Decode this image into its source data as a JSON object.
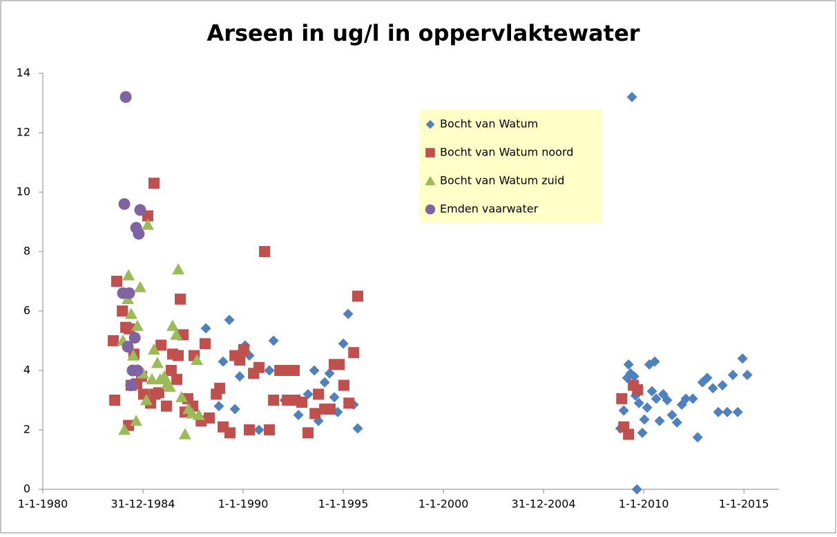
{
  "chart_data": {
    "type": "scatter",
    "title": "Arseen in ug/l in oppervlaktewater",
    "xlim": [
      1980,
      2016.75
    ],
    "xticks": [
      {
        "value": 1980,
        "label": "1-1-1980"
      },
      {
        "value": 1985,
        "label": "31-12-1984"
      },
      {
        "value": 1990,
        "label": "1-1-1990"
      },
      {
        "value": 1995,
        "label": "1-1-1995"
      },
      {
        "value": 2000,
        "label": "1-1-2000"
      },
      {
        "value": 2005,
        "label": "31-12-2004"
      },
      {
        "value": 2010,
        "label": "1-1-2010"
      },
      {
        "value": 2015,
        "label": "1-1-2015"
      }
    ],
    "ylim": [
      0,
      14
    ],
    "yticks": [
      0,
      2,
      4,
      6,
      8,
      10,
      12,
      14
    ],
    "grid": false,
    "legend": "top-right",
    "series": [
      {
        "name": "Bocht van Watum",
        "color": "#4f81bd",
        "marker": "diamond",
        "x": [
          1988.14,
          1989.0,
          1989.31,
          1989.59,
          1989.83,
          1990.1,
          1990.31,
          1990.79,
          1991.31,
          1991.52,
          1988.79,
          1992.07,
          1992.76,
          1993.24,
          1993.55,
          1993.76,
          1994.07,
          1994.31,
          1994.55,
          1994.72,
          1995.0,
          1995.24,
          1995.52,
          1995.72,
          2009.41,
          2009.66,
          2008.83,
          2009.0,
          2009.24,
          2009.34,
          2009.52,
          2009.17,
          2009.59,
          2009.76,
          2009.93,
          2010.03,
          2010.17,
          2010.28,
          2010.41,
          2010.55,
          2010.62,
          2010.79,
          2010.97,
          2011.17,
          2011.41,
          2011.66,
          2011.9,
          2012.1,
          2012.45,
          2012.69,
          2012.93,
          2013.17,
          2013.45,
          2013.72,
          2013.93,
          2014.17,
          2014.45,
          2014.69,
          2014.93,
          2015.17
        ],
        "values": [
          5.42,
          4.3,
          5.7,
          2.7,
          3.8,
          4.84,
          4.5,
          2.0,
          4.0,
          5.0,
          2.8,
          3.0,
          2.5,
          3.2,
          4.0,
          2.3,
          3.6,
          3.9,
          3.1,
          2.6,
          4.9,
          5.9,
          2.85,
          2.05,
          13.2,
          0,
          2.05,
          2.65,
          4.2,
          3.9,
          3.8,
          3.75,
          3.15,
          2.9,
          1.9,
          2.35,
          2.75,
          4.2,
          3.3,
          4.3,
          3.05,
          2.3,
          3.2,
          3.0,
          2.5,
          2.25,
          2.85,
          3.05,
          3.05,
          1.75,
          3.6,
          3.75,
          3.4,
          2.6,
          3.5,
          2.6,
          3.85,
          2.6,
          4.4,
          3.85
        ]
      },
      {
        "name": "Bocht van Watum noord",
        "color": "#c0504d",
        "marker": "square",
        "x": [
          1983.52,
          1983.59,
          1983.69,
          1983.97,
          1984.14,
          1984.28,
          1984.31,
          1984.41,
          1984.55,
          1984.69,
          1984.93,
          1985.03,
          1985.24,
          1985.38,
          1985.55,
          1985.59,
          1985.79,
          1985.9,
          1986.17,
          1986.41,
          1986.48,
          1986.69,
          1986.76,
          1986.86,
          1987.0,
          1987.1,
          1987.24,
          1987.48,
          1987.55,
          1987.9,
          1988.1,
          1988.31,
          1988.66,
          1988.83,
          1989.0,
          1989.34,
          1989.59,
          1989.83,
          1990.03,
          1990.31,
          1990.52,
          1990.79,
          1991.07,
          1991.31,
          1991.52,
          1991.83,
          1992.21,
          1992.55,
          1992.21,
          1992.59,
          1992.93,
          1993.24,
          1993.59,
          1993.76,
          1994.07,
          1994.34,
          1994.55,
          1994.79,
          1995.03,
          1995.28,
          1995.52,
          1995.72,
          2008.9,
          2009.0,
          2009.24,
          2009.48,
          2009.69
        ],
        "values": [
          5.0,
          3.0,
          7.0,
          6.0,
          5.45,
          2.15,
          5.4,
          3.5,
          4.55,
          3.55,
          3.8,
          3.2,
          9.2,
          2.9,
          10.3,
          3.2,
          3.25,
          4.85,
          2.8,
          4.0,
          4.55,
          3.7,
          4.5,
          6.4,
          5.2,
          2.6,
          3.05,
          2.8,
          4.5,
          2.3,
          4.9,
          2.4,
          3.2,
          3.4,
          2.1,
          1.9,
          4.5,
          4.35,
          4.7,
          2.0,
          3.9,
          4.1,
          8.0,
          2.0,
          3.0,
          4.0,
          4.0,
          4.0,
          3.0,
          3.0,
          2.93,
          1.9,
          2.55,
          3.2,
          2.7,
          2.7,
          4.2,
          4.2,
          3.5,
          2.9,
          4.6,
          6.5,
          3.05,
          2.1,
          1.85,
          3.5,
          3.35
        ]
      },
      {
        "name": "Bocht van Watum zuid",
        "color": "#9bbb59",
        "marker": "triangle",
        "x": [
          1984.07,
          1984.0,
          1984.24,
          1984.28,
          1984.41,
          1984.52,
          1984.66,
          1984.72,
          1984.86,
          1985.0,
          1985.17,
          1985.24,
          1985.45,
          1985.55,
          1985.72,
          1985.86,
          1986.07,
          1986.21,
          1986.34,
          1986.48,
          1986.66,
          1986.76,
          1986.93,
          1987.1,
          1987.28,
          1987.45,
          1987.69,
          1987.79
        ],
        "values": [
          2.0,
          5.0,
          6.4,
          7.2,
          5.9,
          4.5,
          2.3,
          5.5,
          6.8,
          3.9,
          3.0,
          8.9,
          3.7,
          4.7,
          4.25,
          3.7,
          3.8,
          3.55,
          3.45,
          5.5,
          5.2,
          7.4,
          3.1,
          1.85,
          2.7,
          2.55,
          4.35,
          2.5
        ]
      },
      {
        "name": "Emden vaarwater",
        "color": "#8064a2",
        "marker": "circle",
        "x": [
          1984.14,
          1984.07,
          1984.86,
          1984.66,
          1984.79,
          1984.0,
          1984.31,
          1984.24,
          1984.59,
          1984.48,
          1984.72,
          1984.41
        ],
        "values": [
          13.2,
          9.6,
          9.4,
          8.8,
          8.6,
          6.6,
          6.6,
          4.8,
          5.1,
          4.0,
          4.0,
          3.5
        ]
      }
    ]
  }
}
